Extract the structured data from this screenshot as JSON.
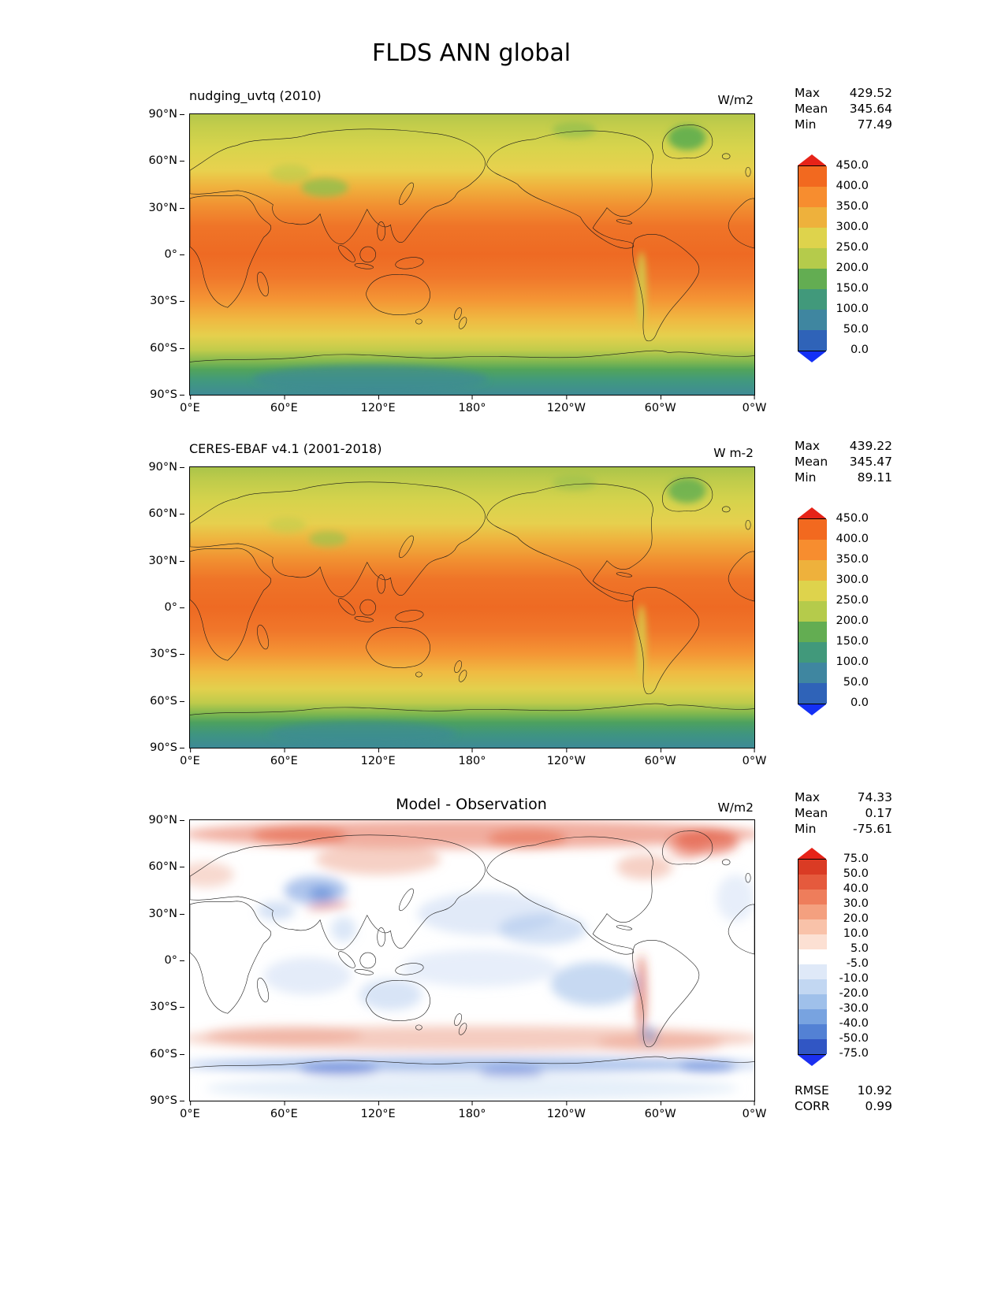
{
  "figure": {
    "title": "FLDS ANN global",
    "x_ticks": [
      "0°E",
      "60°E",
      "120°E",
      "180°",
      "120°W",
      "60°W",
      "0°W"
    ],
    "y_ticks": [
      "90°N",
      "60°N",
      "30°N",
      "0°",
      "30°S",
      "60°S",
      "90°S"
    ]
  },
  "panels": [
    {
      "title": "nudging_uvtq (2010)",
      "units": "W/m2",
      "stats": [
        {
          "label": "Max",
          "value": "429.52"
        },
        {
          "label": "Mean",
          "value": "345.64"
        },
        {
          "label": "Min",
          "value": "77.49"
        }
      ],
      "colorbar": {
        "labels": [
          "450.0",
          "400.0",
          "350.0",
          "300.0",
          "250.0",
          "200.0",
          "150.0",
          "100.0",
          "50.0",
          "0.0"
        ],
        "segment_colors_top_to_bottom": [
          "#f2691f",
          "#f78d2f",
          "#eeb13c",
          "#ded34c",
          "#b5cb4b",
          "#63ad52",
          "#41997b",
          "#3f86a0",
          "#2f63b8"
        ],
        "arrow_top": "#e62318",
        "arrow_bottom": "#1430f5"
      }
    },
    {
      "title": "CERES-EBAF v4.1 (2001-2018)",
      "units": "W m-2",
      "stats": [
        {
          "label": "Max",
          "value": "439.22"
        },
        {
          "label": "Mean",
          "value": "345.47"
        },
        {
          "label": "Min",
          "value": "89.11"
        }
      ],
      "colorbar": {
        "labels": [
          "450.0",
          "400.0",
          "350.0",
          "300.0",
          "250.0",
          "200.0",
          "150.0",
          "100.0",
          "50.0",
          "0.0"
        ],
        "segment_colors_top_to_bottom": [
          "#f2691f",
          "#f78d2f",
          "#eeb13c",
          "#ded34c",
          "#b5cb4b",
          "#63ad52",
          "#41997b",
          "#3f86a0",
          "#2f63b8"
        ],
        "arrow_top": "#e62318",
        "arrow_bottom": "#1430f5"
      }
    },
    {
      "title": "Model - Observation",
      "units": "W/m2",
      "stats": [
        {
          "label": "Max",
          "value": "74.33"
        },
        {
          "label": "Mean",
          "value": "0.17"
        },
        {
          "label": "Min",
          "value": "-75.61"
        }
      ],
      "extra_stats": [
        {
          "label": "RMSE",
          "value": "10.92"
        },
        {
          "label": "CORR",
          "value": "0.99"
        }
      ],
      "colorbar": {
        "labels": [
          "75.0",
          "50.0",
          "40.0",
          "30.0",
          "20.0",
          "10.0",
          "5.0",
          "-5.0",
          "-10.0",
          "-20.0",
          "-30.0",
          "-40.0",
          "-50.0",
          "-75.0"
        ],
        "segment_colors_top_to_bottom": [
          "#da3b24",
          "#e55a3d",
          "#ee7d5b",
          "#f4a07f",
          "#f9c2a9",
          "#fce0d3",
          "#ffffff",
          "#dfe9f8",
          "#c2d7f2",
          "#9fc0ea",
          "#78a3e0",
          "#5381d4",
          "#3156c4"
        ],
        "arrow_top": "#e62318",
        "arrow_bottom": "#1b2ff0"
      }
    }
  ],
  "chart_data": [
    {
      "type": "heatmap",
      "title": "nudging_uvtq (2010)",
      "units": "W/m2",
      "projection": "global equirectangular map, longitude 0°E (left) eastward through 180° (center) to 0°W (right), latitude 90°N (top) to 90°S (bottom)",
      "stats": {
        "max": 429.52,
        "mean": 345.64,
        "min": 77.49
      },
      "colorbar_levels": [
        0,
        50,
        100,
        150,
        200,
        250,
        300,
        350,
        400,
        450
      ],
      "colorbar_extend": "both",
      "approx_zonal_mean": {
        "lat": [
          90,
          80,
          70,
          60,
          50,
          40,
          30,
          20,
          10,
          0,
          -10,
          -20,
          -30,
          -40,
          -50,
          -60,
          -70,
          -80,
          -90
        ],
        "value": [
          265,
          260,
          275,
          300,
          320,
          350,
          380,
          405,
          420,
          425,
          420,
          405,
          385,
          350,
          315,
          290,
          200,
          130,
          105
        ]
      }
    },
    {
      "type": "heatmap",
      "title": "CERES-EBAF v4.1 (2001-2018)",
      "units": "W m-2",
      "projection": "global equirectangular map, longitude 0°E (left) eastward through 180° (center) to 0°W (right), latitude 90°N (top) to 90°S (bottom)",
      "stats": {
        "max": 439.22,
        "mean": 345.47,
        "min": 89.11
      },
      "colorbar_levels": [
        0,
        50,
        100,
        150,
        200,
        250,
        300,
        350,
        400,
        450
      ],
      "colorbar_extend": "both",
      "approx_zonal_mean": {
        "lat": [
          90,
          80,
          70,
          60,
          50,
          40,
          30,
          20,
          10,
          0,
          -10,
          -20,
          -30,
          -40,
          -50,
          -60,
          -70,
          -80,
          -90
        ],
        "value": [
          270,
          265,
          280,
          300,
          320,
          350,
          380,
          405,
          420,
          425,
          420,
          405,
          385,
          350,
          315,
          290,
          210,
          145,
          120
        ]
      }
    },
    {
      "type": "heatmap",
      "title": "Model - Observation",
      "units": "W/m2",
      "projection": "global equirectangular map, longitude 0°E (left) eastward through 180° (center) to 0°W (right), latitude 90°N (top) to 90°S (bottom)",
      "stats": {
        "max": 74.33,
        "mean": 0.17,
        "min": -75.61,
        "rmse": 10.92,
        "corr": 0.99
      },
      "colorbar_levels": [
        -75,
        -50,
        -40,
        -30,
        -20,
        -10,
        -5,
        5,
        10,
        20,
        30,
        40,
        50,
        75
      ],
      "colorbar_extend": "both",
      "notable_features": [
        "warm bias (red) across the Arctic and high northern latitudes",
        "cool bias (blue) over the Tibetan Plateau and central Asia",
        "weak cool bias over subtropical North Pacific, tropical Indian Ocean and southeast Pacific",
        "warm bias band over Southern Ocean mid-latitudes around 45-60S",
        "strong cool bias along the Antarctic coastline",
        "strong warm bias stripe along the Andes",
        "warm bias around Greenland and northeastern Canada"
      ]
    }
  ]
}
